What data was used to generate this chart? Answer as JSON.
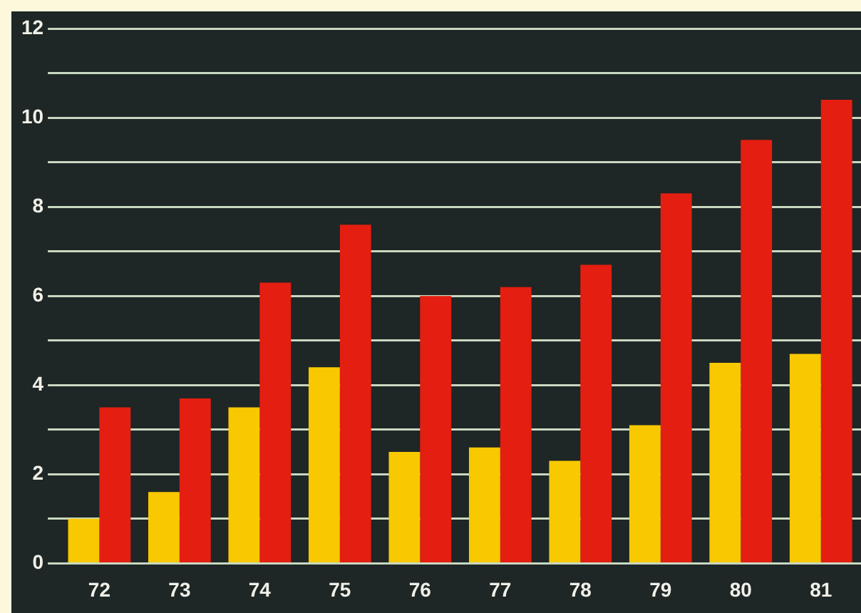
{
  "chart_data": {
    "type": "bar",
    "categories": [
      "72",
      "73",
      "74",
      "75",
      "76",
      "77",
      "78",
      "79",
      "80",
      "81"
    ],
    "series": [
      {
        "color": "#f8c800",
        "values": [
          1.0,
          1.6,
          3.5,
          4.4,
          2.5,
          2.6,
          2.3,
          3.1,
          4.5,
          4.7
        ]
      },
      {
        "color": "#e41e10",
        "values": [
          3.5,
          3.7,
          6.3,
          7.6,
          6.0,
          6.2,
          6.7,
          8.3,
          9.5,
          10.4
        ]
      }
    ],
    "ylim": [
      0,
      12
    ],
    "yticks": [
      0,
      {
        "value": 1,
        "label": null
      },
      2,
      {
        "value": 3,
        "label": null
      },
      4,
      {
        "value": 5,
        "label": null
      },
      6,
      {
        "value": 7,
        "label": null
      },
      8,
      {
        "value": 9,
        "label": null
      },
      10,
      {
        "value": 11,
        "label": null
      },
      12
    ],
    "grid": "y"
  }
}
